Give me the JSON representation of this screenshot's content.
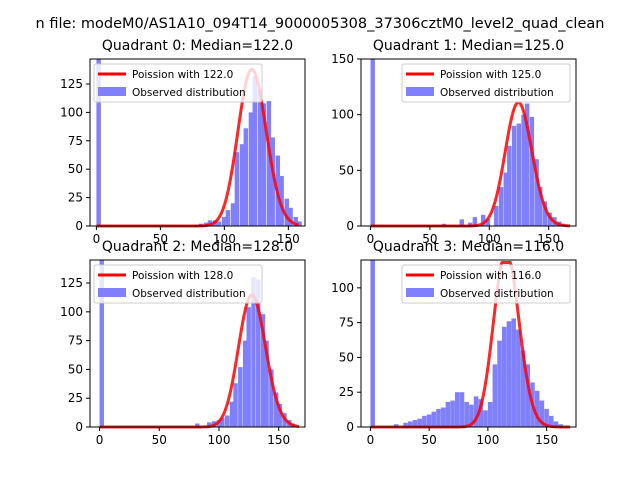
{
  "figure": {
    "suptitle": "n file: modeM0/AS1A10_094T14_9000005308_37306cztM0_level2_quad_clean"
  },
  "colors": {
    "fit_line": "#ff0000",
    "bars": "#8080ff",
    "axis": "#000000",
    "background": "#ffffff"
  },
  "chart_data": [
    {
      "type": "bar",
      "title": "Quadrant 0: Median=122.0",
      "xlim": [
        -5,
        163
      ],
      "ylim": [
        0,
        147
      ],
      "xticks": [
        0,
        50,
        100,
        150
      ],
      "yticks": [
        0,
        25,
        50,
        75,
        100,
        125
      ],
      "legend": {
        "placement": "top-left",
        "entries": [
          "Poission with 122.0",
          "Observed distribution"
        ]
      },
      "bin_width": 3.5,
      "bins": [
        [
          0,
          147
        ],
        [
          77,
          1
        ],
        [
          80,
          2
        ],
        [
          84,
          3
        ],
        [
          87,
          5
        ],
        [
          91,
          5
        ],
        [
          94,
          4
        ],
        [
          98,
          8
        ],
        [
          101,
          14
        ],
        [
          105,
          20
        ],
        [
          108,
          65
        ],
        [
          112,
          72
        ],
        [
          115,
          86
        ],
        [
          119,
          100
        ],
        [
          122,
          132
        ],
        [
          126,
          120
        ],
        [
          129,
          108
        ],
        [
          133,
          110
        ],
        [
          136,
          78
        ],
        [
          140,
          62
        ],
        [
          143,
          44
        ],
        [
          147,
          24
        ],
        [
          150,
          16
        ],
        [
          154,
          8
        ],
        [
          157,
          4
        ]
      ],
      "poisson_mean": 122.0
    },
    {
      "type": "bar",
      "title": "Quadrant 1: Median=125.0",
      "xlim": [
        -8,
        173
      ],
      "ylim": [
        0,
        150
      ],
      "xticks": [
        0,
        50,
        100,
        150
      ],
      "yticks": [
        0,
        50,
        100,
        150
      ],
      "legend": {
        "placement": "top-right",
        "entries": [
          "Poission with 125.0",
          "Observed distribution"
        ]
      },
      "bin_width": 3.7,
      "bins": [
        [
          0,
          150
        ],
        [
          60,
          2
        ],
        [
          75,
          6
        ],
        [
          82,
          3
        ],
        [
          86,
          8
        ],
        [
          93,
          10
        ],
        [
          97,
          6
        ],
        [
          104,
          18
        ],
        [
          108,
          35
        ],
        [
          112,
          48
        ],
        [
          115,
          72
        ],
        [
          119,
          90
        ],
        [
          123,
          92
        ],
        [
          127,
          100
        ],
        [
          130,
          110
        ],
        [
          134,
          98
        ],
        [
          138,
          60
        ],
        [
          141,
          35
        ],
        [
          145,
          22
        ],
        [
          149,
          12
        ],
        [
          153,
          8
        ],
        [
          157,
          4
        ],
        [
          160,
          2
        ]
      ],
      "poisson_mean": 125.0
    },
    {
      "type": "bar",
      "title": "Quadrant 2: Median=128.0",
      "xlim": [
        -8,
        172
      ],
      "ylim": [
        0,
        145
      ],
      "xticks": [
        0,
        50,
        100,
        150
      ],
      "yticks": [
        0,
        25,
        50,
        75,
        100,
        125
      ],
      "legend": {
        "placement": "top-left",
        "entries": [
          "Poission with 128.0",
          "Observed distribution"
        ]
      },
      "bin_width": 3.7,
      "bins": [
        [
          0,
          145
        ],
        [
          80,
          3
        ],
        [
          90,
          4
        ],
        [
          94,
          5
        ],
        [
          98,
          6
        ],
        [
          101,
          8
        ],
        [
          105,
          10
        ],
        [
          109,
          22
        ],
        [
          112,
          38
        ],
        [
          116,
          52
        ],
        [
          120,
          75
        ],
        [
          123,
          104
        ],
        [
          127,
          130
        ],
        [
          131,
          128
        ],
        [
          135,
          98
        ],
        [
          138,
          75
        ],
        [
          142,
          50
        ],
        [
          146,
          30
        ],
        [
          149,
          20
        ],
        [
          153,
          12
        ],
        [
          157,
          6
        ],
        [
          160,
          3
        ]
      ],
      "poisson_mean": 128.0
    },
    {
      "type": "bar",
      "title": "Quadrant 3: Median=116.0",
      "xlim": [
        -8,
        175
      ],
      "ylim": [
        0,
        120
      ],
      "xticks": [
        0,
        50,
        100,
        150
      ],
      "yticks": [
        0,
        25,
        50,
        75,
        100
      ],
      "legend": {
        "placement": "top-right",
        "entries": [
          "Poission with 116.0",
          "Observed distribution"
        ]
      },
      "bin_width": 3.9,
      "bins": [
        [
          0,
          120
        ],
        [
          20,
          2
        ],
        [
          28,
          3
        ],
        [
          32,
          4
        ],
        [
          36,
          5
        ],
        [
          40,
          6
        ],
        [
          44,
          8
        ],
        [
          48,
          9
        ],
        [
          52,
          11
        ],
        [
          56,
          13
        ],
        [
          60,
          14
        ],
        [
          64,
          18
        ],
        [
          68,
          19
        ],
        [
          72,
          25
        ],
        [
          76,
          25
        ],
        [
          80,
          18
        ],
        [
          84,
          16
        ],
        [
          88,
          22
        ],
        [
          92,
          20
        ],
        [
          96,
          12
        ],
        [
          100,
          18
        ],
        [
          104,
          45
        ],
        [
          108,
          62
        ],
        [
          112,
          72
        ],
        [
          116,
          76
        ],
        [
          120,
          78
        ],
        [
          124,
          70
        ],
        [
          128,
          55
        ],
        [
          132,
          45
        ],
        [
          136,
          32
        ],
        [
          140,
          26
        ],
        [
          144,
          19
        ],
        [
          148,
          13
        ],
        [
          152,
          8
        ],
        [
          156,
          4
        ],
        [
          160,
          2
        ]
      ],
      "poisson_mean": 116.0
    }
  ]
}
